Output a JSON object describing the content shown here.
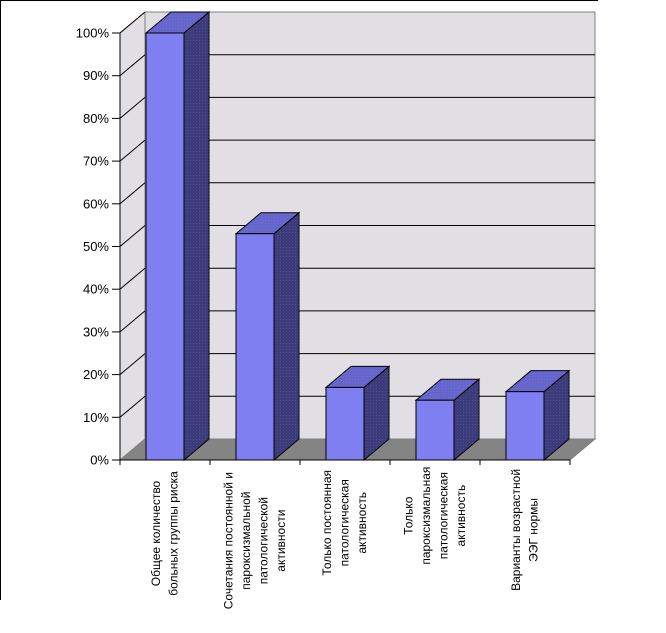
{
  "chart_data": {
    "type": "bar",
    "style": "3d-column",
    "unit": "%",
    "categories": [
      "Общее количество больных группы риска",
      "Сочетания постоянной и пароксизмальной патологической активности",
      "Только постоянная патологическая активность",
      "Только пароксизмальная патологическая активность",
      "Варианты возрастной ЭЭГ нормы"
    ],
    "category_lines": [
      [
        "Общее количество",
        "больных группы риска"
      ],
      [
        "Сочетания постоянной и",
        "пароксизмальной",
        "патологической",
        "активности"
      ],
      [
        "Только постоянная",
        "патологическая",
        "активность"
      ],
      [
        "Только",
        "пароксизмальная",
        "патологическая",
        "активность"
      ],
      [
        "Варианты возрастной",
        "ЭЭГ нормы"
      ]
    ],
    "values": [
      100,
      53,
      17,
      14,
      16
    ],
    "ylim": [
      0,
      100
    ],
    "ytick_step": 10,
    "y_ticks": [
      "0%",
      "10%",
      "20%",
      "30%",
      "40%",
      "50%",
      "60%",
      "70%",
      "80%",
      "90%",
      "100%"
    ],
    "grid": true,
    "legend_position": "none",
    "colors": {
      "bar_front": "#7F7FF2",
      "bar_top": "#6565CB",
      "bar_side": "#3C3C7B",
      "wall": "#E1DFE3",
      "wall_border": "#808080",
      "floor": "#848484",
      "gridline": "#000000",
      "axis": "#000000",
      "text": "#000000",
      "background": "#FFFFFF"
    }
  }
}
